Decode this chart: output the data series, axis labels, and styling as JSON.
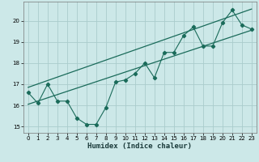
{
  "title": "",
  "xlabel": "Humidex (Indice chaleur)",
  "bg_color": "#cce8e8",
  "grid_color": "#aacccc",
  "line_color": "#1a6b5a",
  "xlim": [
    -0.5,
    23.5
  ],
  "ylim": [
    14.7,
    20.9
  ],
  "xticks": [
    0,
    1,
    2,
    3,
    4,
    5,
    6,
    7,
    8,
    9,
    10,
    11,
    12,
    13,
    14,
    15,
    16,
    17,
    18,
    19,
    20,
    21,
    22,
    23
  ],
  "yticks": [
    15,
    16,
    17,
    18,
    19,
    20
  ],
  "data_x": [
    0,
    1,
    2,
    3,
    4,
    5,
    6,
    7,
    8,
    9,
    10,
    11,
    12,
    13,
    14,
    15,
    16,
    17,
    18,
    19,
    20,
    21,
    22,
    23
  ],
  "data_y": [
    16.6,
    16.1,
    17.0,
    16.2,
    16.2,
    15.4,
    15.1,
    15.1,
    15.9,
    17.1,
    17.2,
    17.5,
    18.0,
    17.3,
    18.5,
    18.5,
    19.3,
    19.7,
    18.8,
    18.8,
    19.9,
    20.5,
    19.8,
    19.6
  ],
  "trend1_x": [
    0,
    23
  ],
  "trend1_y": [
    16.05,
    19.55
  ],
  "trend2_x": [
    0,
    23
  ],
  "trend2_y": [
    16.85,
    20.55
  ]
}
